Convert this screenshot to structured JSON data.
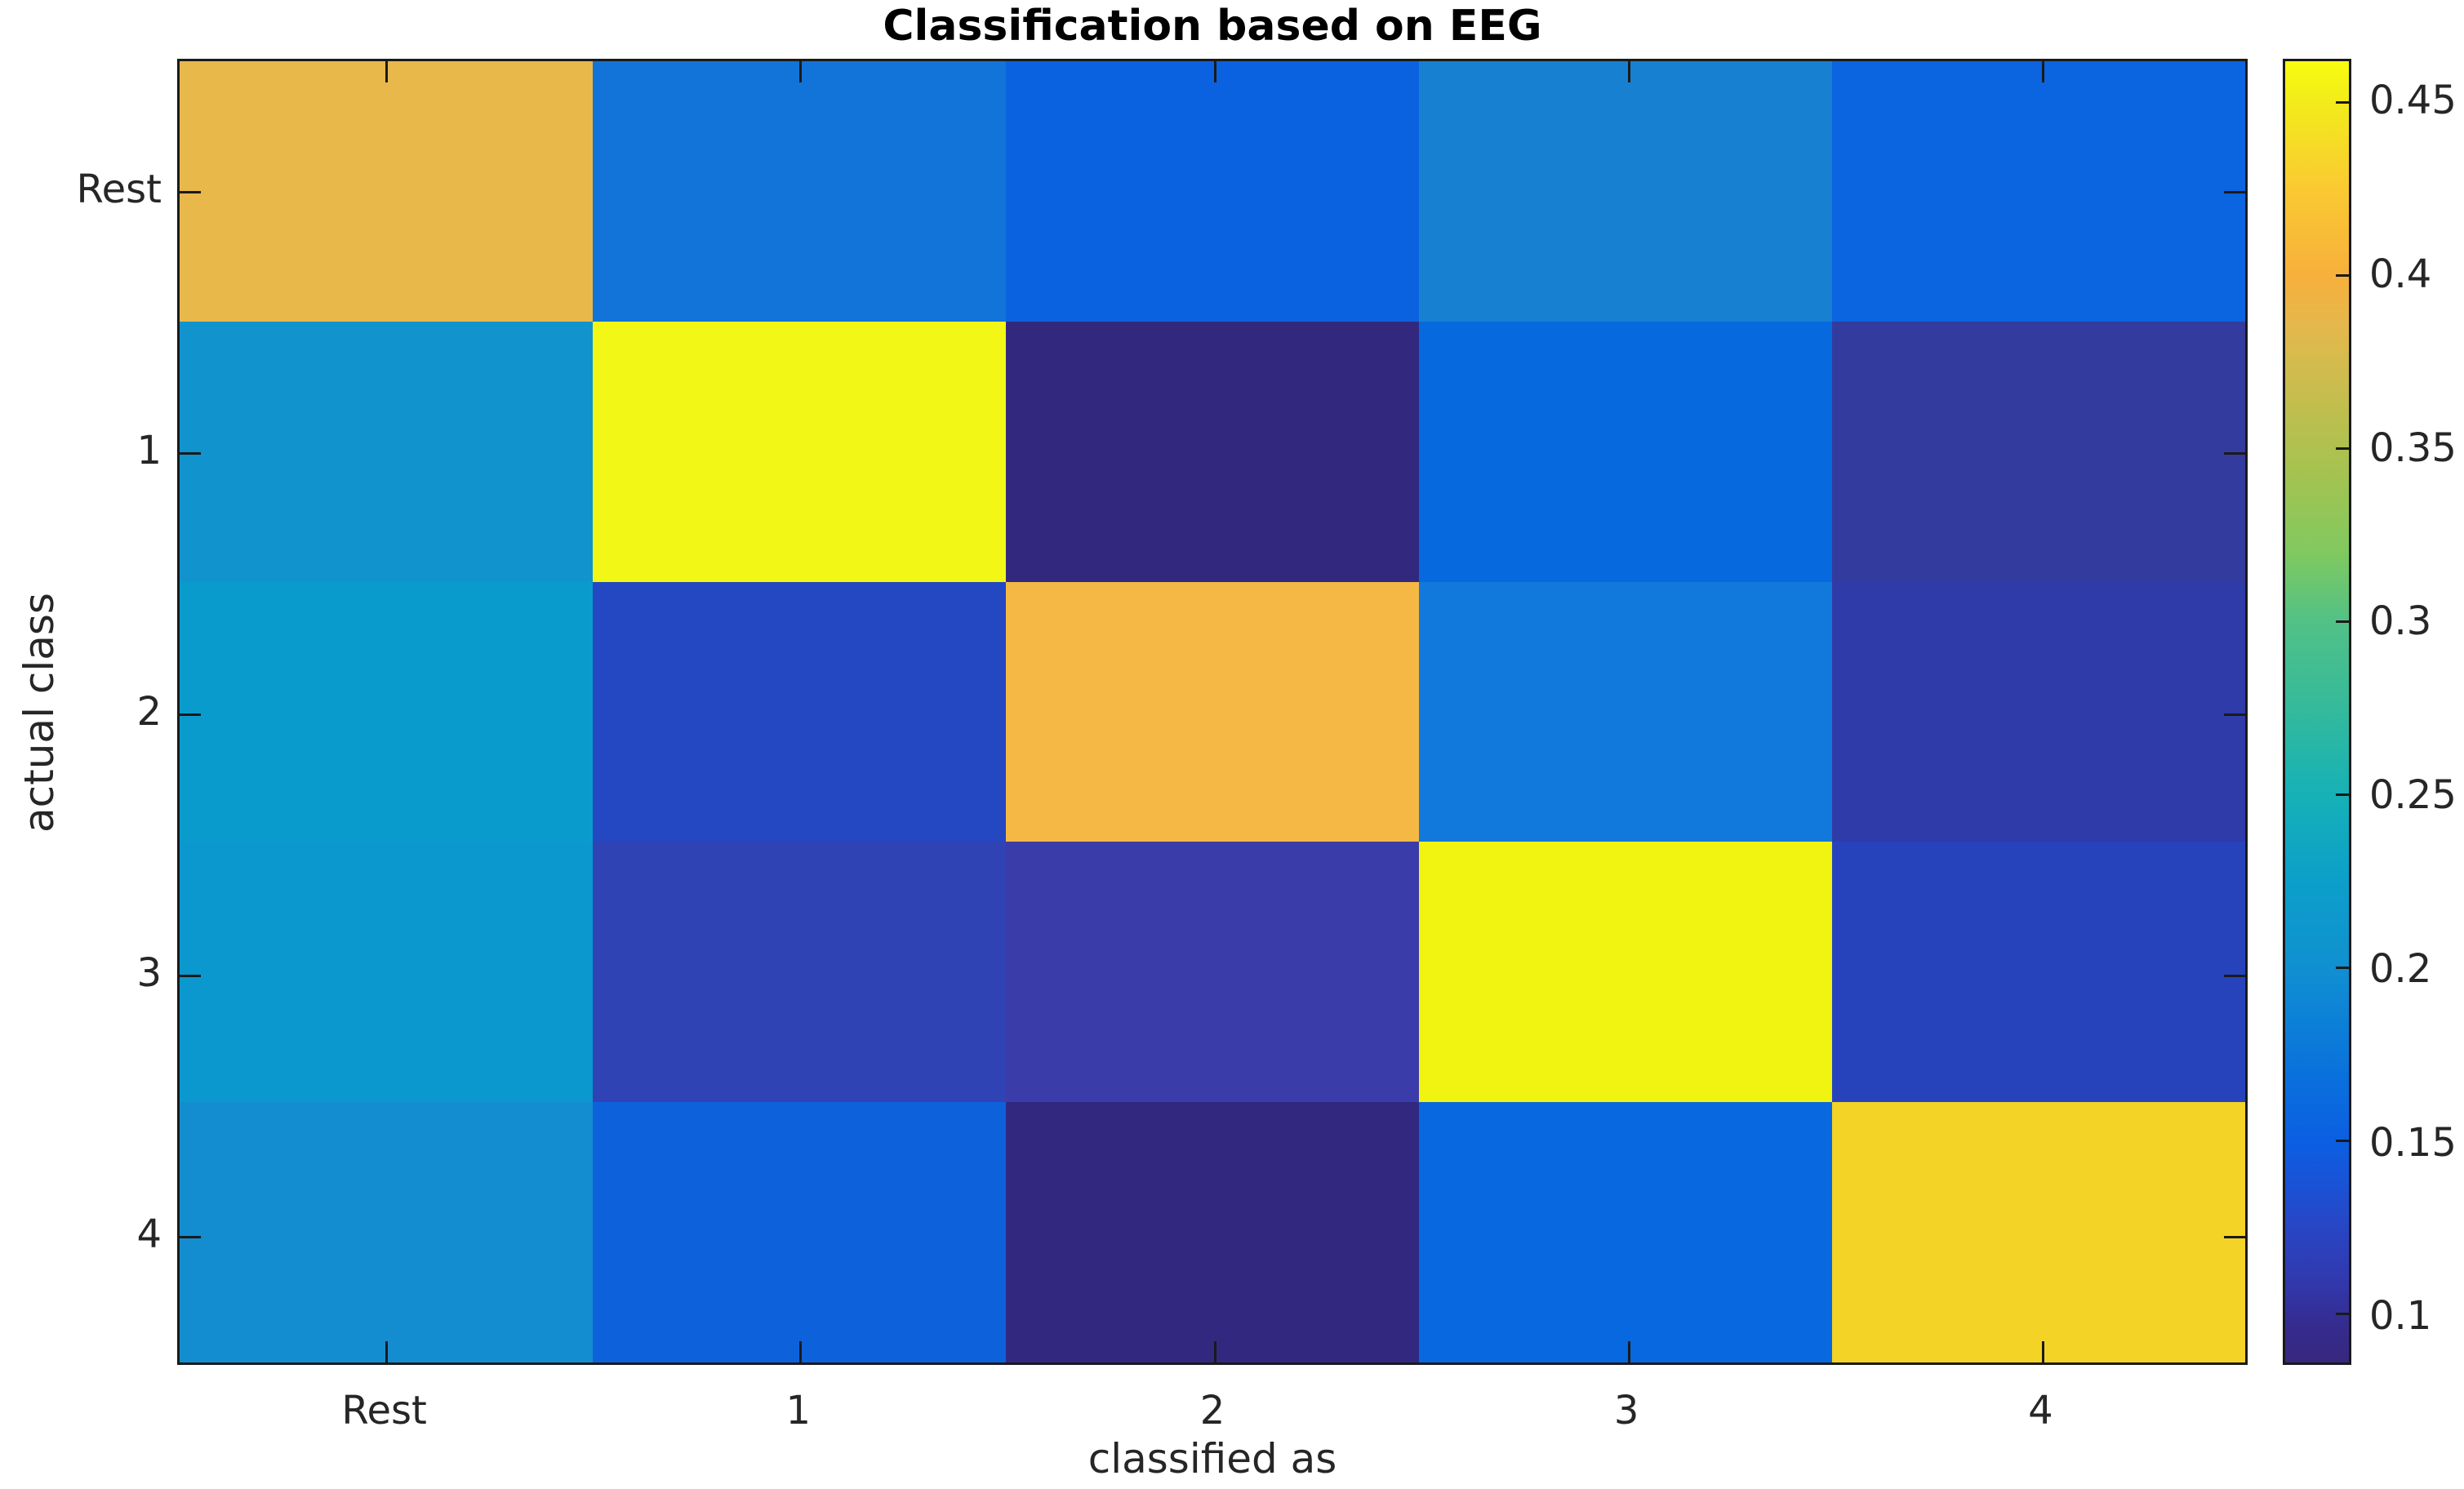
{
  "chart_data": {
    "type": "heatmap",
    "title": "Classification based on EEG",
    "xlabel": "classified as",
    "ylabel": "actual class",
    "colormap": "parula",
    "x_ticklabels": [
      "Rest",
      "1",
      "2",
      "3",
      "4"
    ],
    "y_ticklabels": [
      "Rest",
      "1",
      "2",
      "3",
      "4"
    ],
    "values": [
      [
        0.39,
        0.165,
        0.15,
        0.175,
        0.15
      ],
      [
        0.205,
        0.46,
        0.086,
        0.16,
        0.105
      ],
      [
        0.21,
        0.125,
        0.4,
        0.17,
        0.107
      ],
      [
        0.205,
        0.115,
        0.105,
        0.46,
        0.12
      ],
      [
        0.19,
        0.15,
        0.086,
        0.155,
        0.435
      ]
    ],
    "cell_colors": [
      [
        "#E8B84B",
        "#1273D8",
        "#0B62E0",
        "#1880D0",
        "#0B64E0"
      ],
      [
        "#1193CE",
        "#F3F715",
        "#32297F",
        "#0769DE",
        "#333B9E"
      ],
      [
        "#0A9BCD",
        "#2447C2",
        "#F6B844",
        "#1179DB",
        "#2F3BA8"
      ],
      [
        "#0A98CE",
        "#3043B5",
        "#3A3CA9",
        "#F1F411",
        "#2743BC"
      ],
      [
        "#148DD0",
        "#0D62DC",
        "#322880",
        "#0768DF",
        "#F4D327"
      ]
    ],
    "colorbar": {
      "vmin": 0.086,
      "vmax": 0.462,
      "tick_labels": [
        "0.1",
        "0.15",
        "0.2",
        "0.25",
        "0.3",
        "0.35",
        "0.4",
        "0.45"
      ],
      "tick_values": [
        0.1,
        0.15,
        0.2,
        0.25,
        0.3,
        0.35,
        0.4,
        0.45
      ],
      "gradient_stops": [
        {
          "pct": 0,
          "color": "#38277E"
        },
        {
          "pct": 3,
          "color": "#352C90"
        },
        {
          "pct": 6.4,
          "color": "#3139AF"
        },
        {
          "pct": 10.4,
          "color": "#2846C5"
        },
        {
          "pct": 14,
          "color": "#1953D7"
        },
        {
          "pct": 17,
          "color": "#0B5FE2"
        },
        {
          "pct": 22.4,
          "color": "#0A72DC"
        },
        {
          "pct": 27,
          "color": "#0D83D6"
        },
        {
          "pct": 30.4,
          "color": "#1090D0"
        },
        {
          "pct": 37,
          "color": "#0C9FCA"
        },
        {
          "pct": 43.7,
          "color": "#16B1B7"
        },
        {
          "pct": 50.3,
          "color": "#35BA9B"
        },
        {
          "pct": 57,
          "color": "#52C186"
        },
        {
          "pct": 62.3,
          "color": "#81C95F"
        },
        {
          "pct": 69,
          "color": "#A8C24F"
        },
        {
          "pct": 75.6,
          "color": "#CDBC4E"
        },
        {
          "pct": 79.6,
          "color": "#E4B84C"
        },
        {
          "pct": 83.6,
          "color": "#F7B03B"
        },
        {
          "pct": 90.3,
          "color": "#FACA32"
        },
        {
          "pct": 96.9,
          "color": "#F2EC1A"
        },
        {
          "pct": 100,
          "color": "#F9FB0F"
        }
      ]
    },
    "axes_color": "#1a1a1a",
    "label_color": "#262626",
    "background": "#ffffff"
  }
}
